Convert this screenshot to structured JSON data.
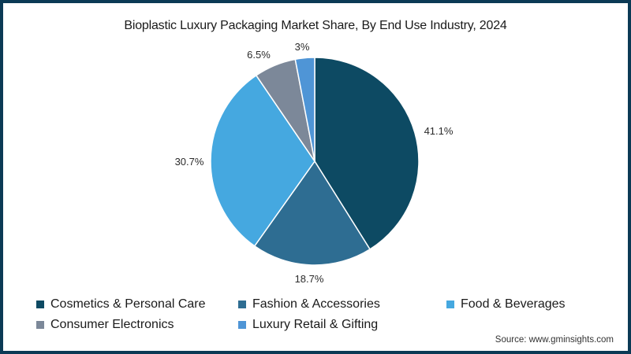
{
  "chart_data": {
    "type": "pie",
    "title": "Bioplastic Luxury Packaging Market Share, By End Use Industry, 2024",
    "categories": [
      "Cosmetics & Personal Care",
      "Fashion & Accessories",
      "Food & Beverages",
      "Consumer Electronics",
      "Luxury Retail & Gifting"
    ],
    "values": [
      41.1,
      18.7,
      30.7,
      6.5,
      3
    ],
    "labels": [
      "41.1%",
      "18.7%",
      "30.7%",
      "6.5%",
      "3%"
    ],
    "colors": [
      "#0d4a63",
      "#2e6d92",
      "#45a8e0",
      "#7c8899",
      "#4f95d6"
    ],
    "start_angle": "12 o'clock, clockwise",
    "legend_position": "bottom"
  },
  "source": "Source: www.gminsights.com",
  "legend": {
    "rows": [
      [
        {
          "label": "Cosmetics & Personal Care",
          "color": "#0d4a63"
        },
        {
          "label": "Fashion & Accessories",
          "color": "#2e6d92"
        },
        {
          "label": "Food & Beverages",
          "color": "#45a8e0"
        }
      ],
      [
        {
          "label": "Consumer Electronics",
          "color": "#7c8899"
        },
        {
          "label": "Luxury Retail & Gifting",
          "color": "#4f95d6"
        }
      ]
    ]
  }
}
